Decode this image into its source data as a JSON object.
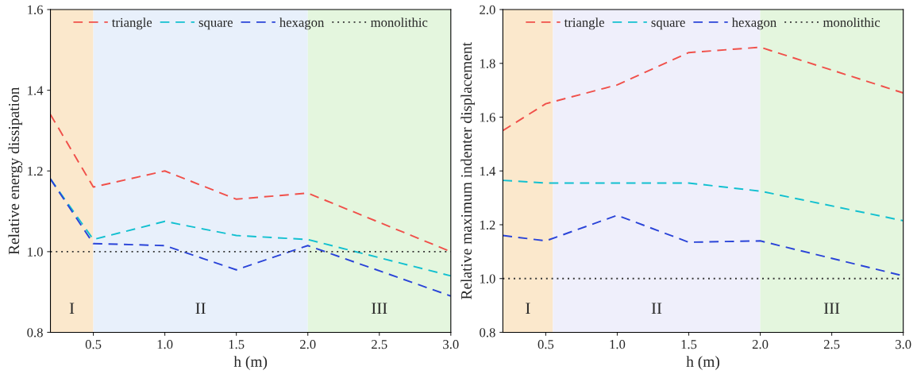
{
  "chart_data": [
    {
      "type": "line",
      "xlabel": "h (m)",
      "ylabel": "Relative energy dissipation",
      "x": [
        0.2,
        0.5,
        1.0,
        1.5,
        2.0,
        3.0
      ],
      "series": [
        {
          "name": "triangle",
          "color": "#f0504a",
          "values": [
            1.34,
            1.16,
            1.2,
            1.13,
            1.145,
            1.0
          ],
          "line_style": "dashed"
        },
        {
          "name": "square",
          "color": "#12c0d0",
          "values": [
            1.18,
            1.03,
            1.075,
            1.04,
            1.03,
            0.94
          ],
          "line_style": "dashed"
        },
        {
          "name": "hexagon",
          "color": "#2a44d8",
          "values": [
            1.18,
            1.02,
            1.015,
            0.955,
            1.015,
            0.89
          ],
          "line_style": "dashed"
        },
        {
          "name": "monolithic",
          "color": "#333333",
          "values": [
            1.0,
            1.0,
            1.0,
            1.0,
            1.0,
            1.0
          ],
          "line_style": "dotted"
        }
      ],
      "bands": [
        {
          "axis": "x",
          "from": 0.2,
          "to": 0.5,
          "label": "I",
          "color": "#fbe8cc"
        },
        {
          "axis": "x",
          "from": 0.5,
          "to": 2.0,
          "label": "II",
          "color": "#e8f0fb"
        },
        {
          "axis": "x",
          "from": 2.0,
          "to": 3.0,
          "label": "III",
          "color": "#e4f6de"
        }
      ],
      "xlim": [
        0.2,
        3.0
      ],
      "xticks": [
        {
          "value": 0.5,
          "label": "0.5"
        },
        {
          "value": 1.0,
          "label": "1.0"
        },
        {
          "value": 1.5,
          "label": "1.5"
        },
        {
          "value": 2.0,
          "label": "2.0"
        },
        {
          "value": 2.5,
          "label": "2.5"
        },
        {
          "value": 3.0,
          "label": "3.0"
        }
      ],
      "ylim": [
        0.8,
        1.6
      ],
      "yticks": [
        {
          "value": 0.8,
          "label": "0.8"
        },
        {
          "value": 1.0,
          "label": "1.0"
        },
        {
          "value": 1.2,
          "label": "1.2"
        },
        {
          "value": 1.4,
          "label": "1.4"
        },
        {
          "value": 1.6,
          "label": "1.6"
        }
      ],
      "legend": "top",
      "grid": false
    },
    {
      "type": "line",
      "xlabel": "h (m)",
      "ylabel": "Relative maximum indenter displacement",
      "x": [
        0.2,
        0.5,
        1.0,
        1.5,
        2.0,
        3.0
      ],
      "series": [
        {
          "name": "triangle",
          "color": "#f0504a",
          "values": [
            1.55,
            1.65,
            1.72,
            1.84,
            1.86,
            1.69
          ],
          "line_style": "dashed"
        },
        {
          "name": "square",
          "color": "#12c0d0",
          "values": [
            1.365,
            1.355,
            1.355,
            1.355,
            1.325,
            1.215
          ],
          "line_style": "dashed"
        },
        {
          "name": "hexagon",
          "color": "#2a44d8",
          "values": [
            1.16,
            1.14,
            1.235,
            1.135,
            1.14,
            1.01
          ],
          "line_style": "dashed"
        },
        {
          "name": "monolithic",
          "color": "#333333",
          "values": [
            1.0,
            1.0,
            1.0,
            1.0,
            1.0,
            1.0
          ],
          "line_style": "dotted"
        }
      ],
      "bands": [
        {
          "axis": "x",
          "from": 0.2,
          "to": 0.55,
          "label": "I",
          "color": "#fbe8cc"
        },
        {
          "axis": "x",
          "from": 0.55,
          "to": 2.0,
          "label": "II",
          "color": "#efeffb"
        },
        {
          "axis": "x",
          "from": 2.0,
          "to": 3.0,
          "label": "III",
          "color": "#e4f6de"
        }
      ],
      "xlim": [
        0.2,
        3.0
      ],
      "xticks": [
        {
          "value": 0.5,
          "label": "0.5"
        },
        {
          "value": 1.0,
          "label": "1.0"
        },
        {
          "value": 1.5,
          "label": "1.5"
        },
        {
          "value": 2.0,
          "label": "2.0"
        },
        {
          "value": 2.5,
          "label": "2.5"
        },
        {
          "value": 3.0,
          "label": "3.0"
        }
      ],
      "ylim": [
        0.8,
        2.0
      ],
      "yticks": [
        {
          "value": 0.8,
          "label": "0.8"
        },
        {
          "value": 1.0,
          "label": "1.0"
        },
        {
          "value": 1.2,
          "label": "1.2"
        },
        {
          "value": 1.4,
          "label": "1.4"
        },
        {
          "value": 1.6,
          "label": "1.6"
        },
        {
          "value": 1.8,
          "label": "1.8"
        },
        {
          "value": 2.0,
          "label": "2.0"
        }
      ],
      "legend": "top",
      "grid": false
    }
  ]
}
